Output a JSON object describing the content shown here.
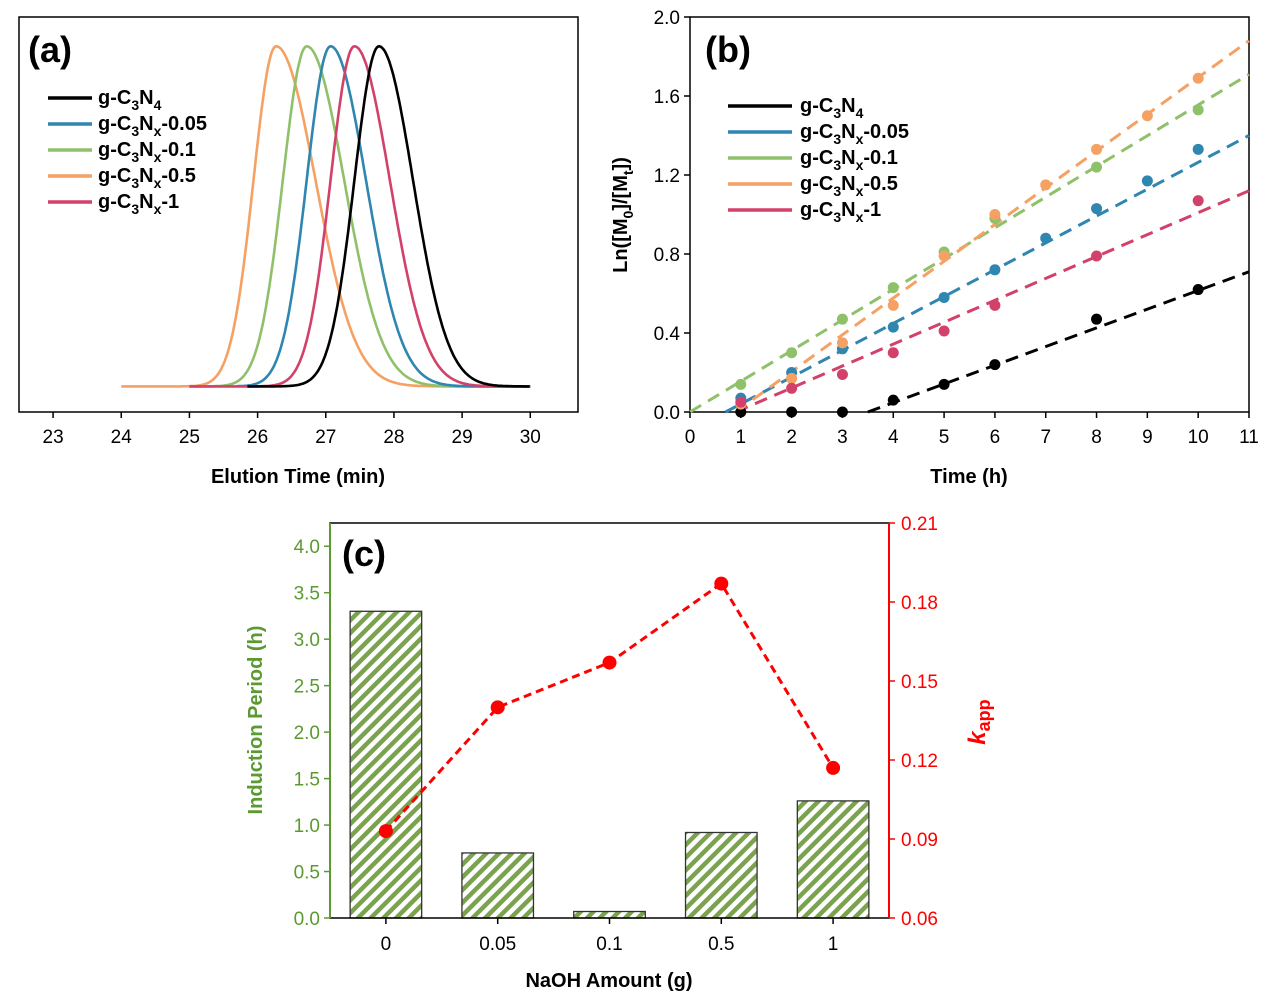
{
  "figure": {
    "panel_labels": [
      "(a)",
      "(b)",
      "(c)"
    ]
  },
  "legend_series": [
    {
      "prefix": "g-C",
      "sub1": "3",
      "mid": "N",
      "sub2": "4",
      "suffix": "",
      "color": "#000000"
    },
    {
      "prefix": "g-C",
      "sub1": "3",
      "mid": "N",
      "sub2": "x",
      "suffix": "-0.05",
      "color": "#2f86b0"
    },
    {
      "prefix": "g-C",
      "sub1": "3",
      "mid": "N",
      "sub2": "x",
      "suffix": "-0.1",
      "color": "#8fc06a"
    },
    {
      "prefix": "g-C",
      "sub1": "3",
      "mid": "N",
      "sub2": "x",
      "suffix": "-0.5",
      "color": "#f4a163"
    },
    {
      "prefix": "g-C",
      "sub1": "3",
      "mid": "N",
      "sub2": "x",
      "suffix": "-1",
      "color": "#d2416a"
    }
  ],
  "chart_data": [
    {
      "panel": "(a)",
      "type": "line",
      "xlabel": "Elution Time (min)",
      "ylabel": "",
      "xlim": [
        22.5,
        30.7
      ],
      "ylim": [
        0,
        1.08
      ],
      "xticks": [
        "23",
        "24",
        "25",
        "26",
        "27",
        "28",
        "29",
        "30"
      ],
      "legend_position": "top-left",
      "series": [
        {
          "name": "g-C3N4",
          "peak": 27.78,
          "sigma_left": 0.36,
          "sigma_right": 0.5,
          "baseline": 0.07,
          "x_start": 25.85,
          "x_end": 30.0
        },
        {
          "name": "g-C3Nx-0.05",
          "peak": 27.07,
          "sigma_left": 0.35,
          "sigma_right": 0.52,
          "baseline": 0.07,
          "x_start": 25.7,
          "x_end": 30.0
        },
        {
          "name": "g-C3Nx-0.1",
          "peak": 26.72,
          "sigma_left": 0.35,
          "sigma_right": 0.55,
          "baseline": 0.07,
          "x_start": 25.0,
          "x_end": 30.0
        },
        {
          "name": "g-C3Nx-0.5",
          "peak": 26.27,
          "sigma_left": 0.33,
          "sigma_right": 0.58,
          "baseline": 0.07,
          "x_start": 24.0,
          "x_end": 30.0
        },
        {
          "name": "g-C3Nx-1",
          "peak": 27.42,
          "sigma_left": 0.35,
          "sigma_right": 0.52,
          "baseline": 0.07,
          "x_start": 25.0,
          "x_end": 30.0
        }
      ]
    },
    {
      "panel": "(b)",
      "type": "scatter",
      "xlabel": "Time (h)",
      "ylabel": "Ln([M0]/[Mt])",
      "ylabel_parts": {
        "a": "Ln([M",
        "sub_a": "0",
        "b": "]/[M",
        "sub_b": "t",
        "c": "])"
      },
      "xlim": [
        0,
        11
      ],
      "ylim": [
        0,
        2.0
      ],
      "xticks": [
        "0",
        "1",
        "2",
        "3",
        "4",
        "5",
        "6",
        "7",
        "8",
        "9",
        "10",
        "11"
      ],
      "yticks": [
        "0.0",
        "0.4",
        "0.8",
        "1.2",
        "1.6",
        "2.0"
      ],
      "legend_position": "top-left",
      "series": [
        {
          "name": "g-C3N4",
          "x": [
            1,
            2,
            3,
            4,
            5,
            6,
            8,
            10
          ],
          "y": [
            0.0,
            0.0,
            0.0,
            0.06,
            0.14,
            0.24,
            0.47,
            0.62
          ],
          "fit": [
            3.5,
            0.0,
            11.0,
            0.71
          ]
        },
        {
          "name": "g-C3Nx-0.05",
          "x": [
            1,
            2,
            3,
            4,
            5,
            6,
            7,
            8,
            9,
            10
          ],
          "y": [
            0.07,
            0.2,
            0.32,
            0.43,
            0.58,
            0.72,
            0.88,
            1.03,
            1.17,
            1.33
          ],
          "fit": [
            0.7,
            0.0,
            11.0,
            1.4
          ]
        },
        {
          "name": "g-C3Nx-0.1",
          "x": [
            1,
            2,
            3,
            4,
            5,
            6,
            8,
            10
          ],
          "y": [
            0.14,
            0.3,
            0.47,
            0.63,
            0.81,
            0.98,
            1.24,
            1.53
          ],
          "fit": [
            0.0,
            0.0,
            11.0,
            1.71
          ]
        },
        {
          "name": "g-C3Nx-0.5",
          "x": [
            1,
            2,
            3,
            4,
            5,
            6,
            7,
            8,
            9,
            10
          ],
          "y": [
            0.04,
            0.17,
            0.35,
            0.54,
            0.79,
            1.0,
            1.15,
            1.33,
            1.5,
            1.69
          ],
          "fit": [
            0.9,
            0.0,
            11.0,
            1.88
          ]
        },
        {
          "name": "g-C3Nx-1",
          "x": [
            1,
            2,
            3,
            4,
            5,
            6,
            8,
            10
          ],
          "y": [
            0.05,
            0.12,
            0.19,
            0.3,
            0.41,
            0.54,
            0.79,
            1.07
          ],
          "fit": [
            0.9,
            0.0,
            11.0,
            1.12
          ]
        }
      ]
    },
    {
      "panel": "(c)",
      "type": "bar",
      "xlabel": "NaOH Amount (g)",
      "ylabel": "Induction Period (h)",
      "ylabel_right": "kapp",
      "ylabel_right_parts": {
        "k": "k",
        "sub": "app"
      },
      "categories": [
        "0",
        "0.05",
        "0.1",
        "0.5",
        "1"
      ],
      "bar_values": [
        3.3,
        0.7,
        0.07,
        0.92,
        1.26
      ],
      "line_values": [
        0.093,
        0.14,
        0.157,
        0.187,
        0.117
      ],
      "ylim": [
        0,
        4.25
      ],
      "ylim_right": [
        0.06,
        0.21
      ],
      "yticks": [
        "0.0",
        "0.5",
        "1.0",
        "1.5",
        "2.0",
        "2.5",
        "3.0",
        "3.5",
        "4.0"
      ],
      "yticks_right": [
        "0.06",
        "0.09",
        "0.12",
        "0.15",
        "0.18",
        "0.21"
      ],
      "bar_color": "#7aa24f",
      "line_color": "#ff0000",
      "left_axis_color": "#5a9a30"
    }
  ]
}
